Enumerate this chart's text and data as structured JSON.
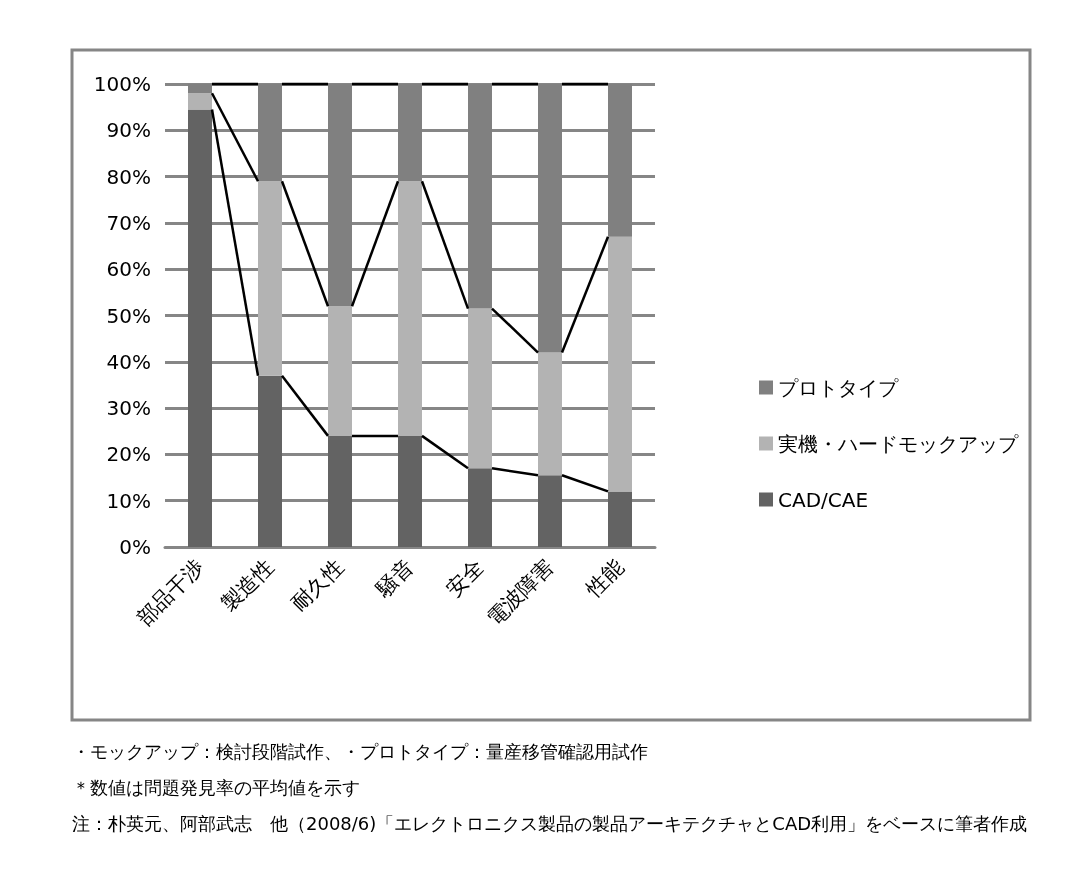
{
  "chart_data": {
    "type": "bar",
    "stacked": true,
    "categories": [
      "部品干渉",
      "製造性",
      "耐久性",
      "騒音",
      "安全",
      "電波障害",
      "性能"
    ],
    "series": [
      {
        "name": "CAD/CAE",
        "color": "#636363",
        "values": [
          94.5,
          37,
          24,
          24,
          17,
          15.5,
          12
        ]
      },
      {
        "name": "実機・ハードモックアップ",
        "color": "#b3b3b3",
        "values": [
          3.5,
          42,
          28,
          55,
          34.5,
          26.5,
          55
        ]
      },
      {
        "name": "プロトタイプ",
        "color": "#808080",
        "values": [
          2,
          21,
          48,
          21,
          48.5,
          58,
          33
        ]
      }
    ],
    "ylim": [
      0,
      100
    ],
    "yticks": [
      {
        "value": 0,
        "label": "0%"
      },
      {
        "value": 10,
        "label": "10%"
      },
      {
        "value": 20,
        "label": "20%"
      },
      {
        "value": 30,
        "label": "30%"
      },
      {
        "value": 40,
        "label": "40%"
      },
      {
        "value": 50,
        "label": "50%"
      },
      {
        "value": 60,
        "label": "60%"
      },
      {
        "value": 70,
        "label": "70%"
      },
      {
        "value": 80,
        "label": "80%"
      },
      {
        "value": 90,
        "label": "90%"
      },
      {
        "value": 100,
        "label": "100%"
      }
    ],
    "grid": "y",
    "legend": "right",
    "annotations": [
      "・モックアップ：検討段階試作、・プロトタイプ：量産移管確認用試作",
      "＊数値は問題発見率の平均値を示す",
      "注：朴英元、阿部武志　他（2008/6)「エレクトロニクス製品の製品アーキテクチャとCAD利用」をベースに筆者作成"
    ]
  }
}
